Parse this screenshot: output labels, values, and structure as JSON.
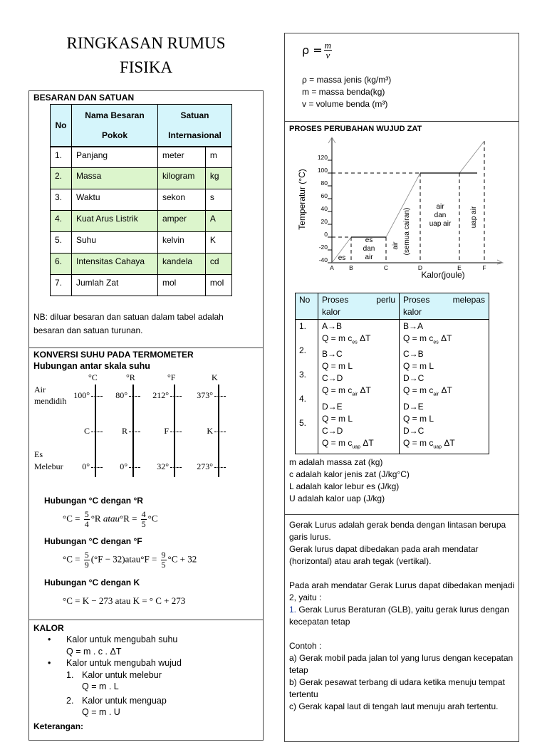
{
  "doc_title": [
    "RINGKASAN RUMUS",
    "FISIKA"
  ],
  "besaran": {
    "heading": "BESARAN DAN SATUAN",
    "headers": {
      "no": "No",
      "nama1": "Nama Besaran",
      "nama2": "Pokok",
      "satuan1": "Satuan",
      "satuan2": "Internasional"
    },
    "rows": [
      {
        "no": "1.",
        "nama": "Panjang",
        "satuan": "meter",
        "simbol": "m"
      },
      {
        "no": "2.",
        "nama": "Massa",
        "satuan": "kilogram",
        "simbol": "kg"
      },
      {
        "no": "3.",
        "nama": "Waktu",
        "satuan": "sekon",
        "simbol": "s"
      },
      {
        "no": "4.",
        "nama": "Kuat Arus Listrik",
        "satuan": "amper",
        "simbol": "A"
      },
      {
        "no": "5.",
        "nama": "Suhu",
        "satuan": "kelvin",
        "simbol": "K"
      },
      {
        "no": "6.",
        "nama": "Intensitas Cahaya",
        "satuan": "kandela",
        "simbol": "cd"
      },
      {
        "no": "7.",
        "nama": "Jumlah Zat",
        "satuan": "mol",
        "simbol": "mol"
      }
    ],
    "note": "NB: diluar besaran dan satuan dalam tabel adalah besaran dan satuan turunan.",
    "colors": {
      "header": "#d5f5fb",
      "stripe": "#dcf5cc"
    }
  },
  "konversi": {
    "heading": "KONVERSI SUHU PADA TERMOMETER",
    "subheading": "Hubungan antar skala suhu",
    "scales": [
      "°C",
      "°R",
      "°F",
      "K"
    ],
    "row_labels": {
      "top1": "Air",
      "top2": "mendidih",
      "bot1": "Es",
      "bot2": "Melebur"
    },
    "top": [
      "100°",
      "80°",
      "212°",
      "373°"
    ],
    "mid": [
      "C",
      "R",
      "F",
      "K"
    ],
    "bottom": [
      "0°",
      "0°",
      "32°",
      "273°"
    ],
    "rel_cr": "Hubungan °C dengan °R",
    "rel_cf": "Hubungan °C dengan °F",
    "rel_ck": "Hubungan °C dengan K",
    "atau": "atau",
    "f_cr": {
      "a": "°C = ",
      "n1": "5",
      "d1": "4",
      "b": "°R ",
      "c": "°R = ",
      "n2": "4",
      "d2": "5",
      "e": "°C"
    },
    "f_cf": {
      "a": "°C = ",
      "n1": "5",
      "d1": "9",
      "b": "(°F − 32)",
      "c": "°F = ",
      "n2": "9",
      "d2": "5",
      "e": "°C + 32"
    },
    "f_ck": "°C = K − 273 atau K = ° C + 273"
  },
  "kalor": {
    "heading": "KALOR",
    "b1": "Kalor untuk mengubah suhu",
    "b1f": "Q = m  . c  . ΔT",
    "b2": "Kalor untuk mengubah wujud",
    "n1": "1.",
    "n1t": "Kalor untuk melebur",
    "n1f": "Q = m . L",
    "n2": "2.",
    "n2t": "Kalor untuk menguap",
    "n2f": "Q = m . U",
    "ket": "Keterangan:"
  },
  "massa_jenis": {
    "rho": "ρ = ",
    "m": "m",
    "v": "v",
    "lines": [
      "ρ = massa jenis (kg/m³)",
      "m = massa benda(kg)",
      "v = volume benda (m³)"
    ]
  },
  "wujud": {
    "heading": "PROSES PERUBAHAN WUJUD ZAT",
    "chart_data": {
      "type": "line",
      "xlabel": "Kalor(joule)",
      "ylabel": "Temperatur (°C)",
      "x_ticks": [
        "A",
        "B",
        "C",
        "D",
        "E",
        "F"
      ],
      "y_ticks": [
        -40,
        -20,
        0,
        20,
        40,
        60,
        80,
        100,
        120
      ],
      "ylim": [
        -40,
        130
      ],
      "points": [
        {
          "x": "A",
          "y": -40
        },
        {
          "x": "B",
          "y": 0
        },
        {
          "x": "C",
          "y": 0
        },
        {
          "x": "D",
          "y": 100
        },
        {
          "x": "E",
          "y": 100
        },
        {
          "x": "F",
          "y": 150
        }
      ],
      "regions": [
        [
          "es"
        ],
        [
          "es",
          "dan",
          "air"
        ],
        [
          "air",
          "(semua cairan)"
        ],
        [
          "air",
          "dan",
          "uap air"
        ],
        [
          "uap air"
        ]
      ]
    },
    "table": {
      "h_no": "No",
      "h_perlu": [
        "Proses",
        "perlu",
        "kalor"
      ],
      "h_lepas": [
        "Proses",
        "melepas",
        "kalor"
      ],
      "rows": [
        {
          "no": "1.",
          "p1": "A→B",
          "p2": "Q = m c",
          "p2s": "es",
          "l1": "B→A",
          "l2": "Q = m c",
          "l2s": "es"
        },
        {
          "no": "2.",
          "p1": "B→C",
          "p2": "Q = m L",
          "p2s": "",
          "l1": "C→B",
          "l2": "Q = m L",
          "l2s": ""
        },
        {
          "no": "3.",
          "p1": "C→D",
          "p2": "Q = m c",
          "p2s": "air",
          "l1": "D→C",
          "l2": "Q = m c",
          "l2s": "air"
        },
        {
          "no": "4.",
          "p1": "D→E",
          "p2": "Q = m L",
          "p2s": "",
          "l1": "D→E",
          "l2": "Q = m L",
          "l2s": ""
        },
        {
          "no": "5.",
          "p1": "C→D",
          "p2": "Q = m c",
          "p2s": "uap",
          "l1": "D→C",
          "l2": "Q = m c",
          "l2s": "uap"
        }
      ],
      "dt": " ΔT"
    },
    "notes": [
      "m adalah massa zat (kg)",
      "c adalah kalor jenis zat (J/kg°C)",
      "L adalah kalor lebur es (J/kg)",
      "U adalah kalor uap (J/kg)"
    ]
  },
  "gerak": {
    "p1": "Gerak Lurus adalah gerak benda dengan lintasan berupa garis lurus.",
    "p2": "Gerak lurus dapat dibedakan pada arah mendatar (horizontal) atau arah tegak (vertikal).",
    "p3": "Pada arah mendatar Gerak Lurus dapat dibedakan menjadi 2, yaitu :",
    "num": "1.",
    "p4": " Gerak Lurus Beraturan (GLB), yaitu gerak lurus dengan kecepatan tetap",
    "contoh": "Contoh :",
    "c1": "a) Gerak mobil pada jalan tol yang lurus dengan kecepatan tetap",
    "c2": "b) Gerak pesawat terbang di udara ketika menuju tempat tertentu",
    "c3": "c) Gerak kapal laut di tengah laut menuju arah tertentu."
  }
}
